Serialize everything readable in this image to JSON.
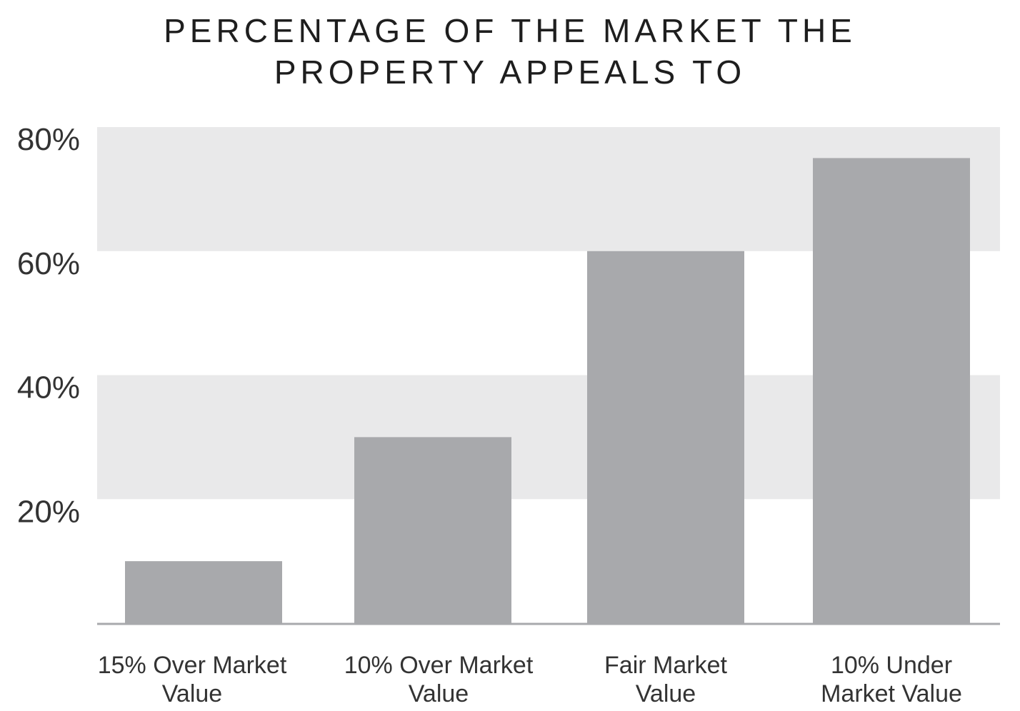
{
  "chart_data": {
    "type": "bar",
    "title_lines": [
      "PERCENTAGE OF THE MARKET THE",
      "PROPERTY APPEALS TO"
    ],
    "categories": [
      [
        "15% Over Market",
        "Value"
      ],
      [
        "10% Over Market",
        "Value"
      ],
      [
        "Fair Market",
        "Value"
      ],
      [
        "10% Under",
        "Market Value"
      ]
    ],
    "values": [
      10,
      30,
      60,
      75
    ],
    "ylim": [
      0,
      80
    ],
    "yticks": [
      20,
      40,
      60,
      80
    ],
    "ytick_labels": [
      "20%",
      "40%",
      "60%",
      "80%"
    ],
    "xlabel": "",
    "ylabel": "",
    "grid": "alternating horizontal bands",
    "colors": {
      "bar": "#a8a9ac",
      "band": "#e9e9ea",
      "axis": "#a8a9ac"
    }
  }
}
